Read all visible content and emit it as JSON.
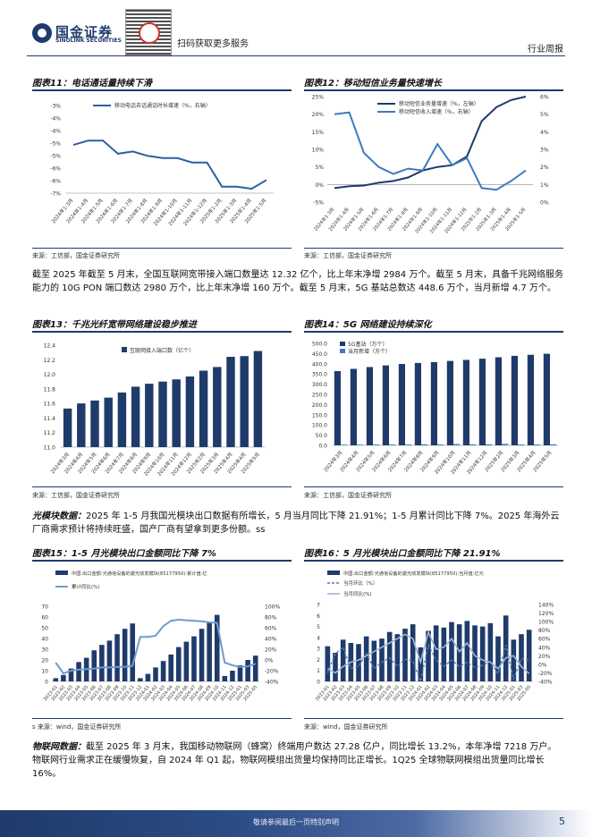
{
  "header": {
    "brand_cn": "国金证券",
    "brand_en": "SINOLINK SECURITIES",
    "qr_text": "扫码获取更多服务",
    "doc_type": "行业周报"
  },
  "fig11": {
    "title": "图表11：电话通话量持续下滑",
    "source": "来源：工信部，国金证券研究所",
    "chart_data": {
      "type": "line",
      "title": "电话通话量持续下滑",
      "series": [
        {
          "name": "移动电话去话通话时长增速（%，右轴）",
          "values": [
            -4.8,
            -4.6,
            -4.6,
            -5.2,
            -5.1,
            -5.3,
            -5.4,
            -5.4,
            -5.6,
            -5.6,
            -6.7,
            -6.7,
            -6.8,
            -6.4
          ]
        }
      ],
      "categories": [
        "2024年1-3月",
        "2024年1-4月",
        "2024年1-5月",
        "2024年1-6月",
        "2024年1-7月",
        "2024年1-8月",
        "2024年1-9月",
        "2024年1-10月",
        "2024年1-11月",
        "2024年1-12月",
        "2025年1-2月",
        "2025年1-3月",
        "2025年1-4月",
        "2025年1-5月"
      ],
      "yticks": [
        "-3%",
        "-4%",
        "-4%",
        "-5%",
        "-5%",
        "-6%",
        "-6%",
        "-7%"
      ],
      "ylim": [
        -7,
        -3
      ]
    }
  },
  "fig12": {
    "title": "图表12：移动短信业务量快速增长",
    "source": "来源：工信部，国金证券研究所",
    "chart_data": {
      "type": "line",
      "categories": [
        "2024年1-3月",
        "2024年1-4月",
        "2024年1-5月",
        "2024年1-6月",
        "2024年1-7月",
        "2024年1-8月",
        "2024年1-9月",
        "2024年1-10月",
        "2024年1-11月",
        "2024年1-12月",
        "2025年1-2月",
        "2025年1-3月",
        "2025年1-4月",
        "2025年1-5月"
      ],
      "series": [
        {
          "name": "移动短信业务量增速（%，左轴）",
          "axis": "left",
          "values": [
            -1,
            -0.5,
            -0.3,
            0.5,
            1,
            2,
            4,
            5,
            5.5,
            8,
            18,
            22,
            24,
            25
          ]
        },
        {
          "name": "移动短信收入增速（%，右轴）",
          "axis": "right",
          "values": [
            5,
            5.1,
            2.8,
            2,
            1.6,
            1.9,
            1.8,
            3.3,
            2.1,
            2.5,
            0.8,
            0.7,
            1.2,
            1.8
          ]
        }
      ],
      "left_ticks": [
        "25%",
        "20%",
        "15%",
        "10%",
        "5%",
        "0%",
        "-5%"
      ],
      "right_ticks": [
        "6%",
        "5%",
        "4%",
        "3%",
        "2%",
        "1%",
        "0%"
      ],
      "ylim_left": [
        -5,
        25
      ],
      "ylim_right": [
        0,
        6
      ]
    }
  },
  "para1": "截至 2025 年截至 5 月末，全国互联网宽带接入端口数量达 12.32 亿个，比上年末净增 2984 万个。截至 5 月末，具备千兆网络服务能力的 10G PON 端口数达 2980 万个，比上年末净增 160 万个。截至 5 月末，5G 基站总数达 448.6 万个，当月新增 4.7 万个。",
  "fig13": {
    "title": "图表13：千兆光纤宽带网络建设稳步推进",
    "source": "来源：工信部，国金证券研究所",
    "chart_data": {
      "type": "bar",
      "series": [
        {
          "name": "互联网接入端口数（亿个）",
          "values": [
            11.53,
            11.6,
            11.64,
            11.68,
            11.75,
            11.83,
            11.87,
            11.9,
            11.93,
            11.97,
            12.05,
            12.1,
            12.24,
            12.25,
            12.32
          ]
        }
      ],
      "categories": [
        "2024年3月",
        "2024年4月",
        "2024年5月",
        "2024年6月",
        "2024年7月",
        "2024年8月",
        "2024年9月",
        "2024年10月",
        "2024年11月",
        "2024年12月",
        "2025年2月",
        "2025年3月",
        "2025年4月",
        "2025年4月",
        "2025年5月"
      ],
      "yticks": [
        "12.4",
        "12.2",
        "12.0",
        "11.8",
        "11.6",
        "11.4",
        "11.2",
        "11.0"
      ],
      "ylim": [
        11.0,
        12.4
      ]
    }
  },
  "fig14": {
    "title": "图表14：5G 网络建设持续深化",
    "source": "来源：工信部，国金证券研究所",
    "chart_data": {
      "type": "bar",
      "categories": [
        "2024年3月",
        "2024年4月",
        "2024年5月",
        "2024年6月",
        "2024年7月",
        "2024年8月",
        "2024年9月",
        "2024年10月",
        "2024年11月",
        "2024年12月",
        "2025年2月",
        "2025年3月",
        "2025年4月",
        "2025年5月"
      ],
      "series": [
        {
          "name": "5G基站（万个）",
          "values": [
            364,
            375,
            384,
            392,
            399,
            404,
            408,
            414,
            419,
            425,
            432,
            439,
            444,
            449
          ]
        },
        {
          "name": "当月新增（万个）",
          "values": [
            3,
            3,
            4,
            4,
            4,
            5,
            4,
            6,
            5,
            5,
            7,
            4,
            4,
            5
          ]
        }
      ],
      "yticks": [
        "500.0",
        "450.0",
        "400.0",
        "350.0",
        "300.0",
        "250.0",
        "200.0",
        "150.0",
        "100.0",
        "50.0",
        "0.0"
      ],
      "ylim": [
        0,
        500
      ]
    }
  },
  "para2_label": "光模块数据：",
  "para2": "2025 年 1-5 月我国光模块出口数据有所增长，5 月当月同比下降 21.91%；1-5 月累计同比下降 7%。2025 年海外云厂商需求预计将持续旺盛，国产厂商有望拿到更多份额。ss",
  "fig15": {
    "title": "图表15：1-5 月光模块出口金额同比下降 7%",
    "source": "s 来源：wind，国金证券研究所",
    "chart_data": {
      "type": "bar",
      "legend": [
        "中国:出口金额:光通信设备的激光收发模块(85177950):累计值:亿",
        "累计同比(%)"
      ],
      "series": [
        {
          "name": "累计值",
          "axis": "left",
          "values": [
            3,
            6,
            12,
            18,
            22,
            29,
            34,
            38,
            44,
            49,
            54,
            3,
            7,
            13,
            19,
            25,
            32,
            37,
            42,
            49,
            55,
            62,
            5,
            10,
            15,
            20,
            24
          ]
        },
        {
          "name": "累计同比(%)",
          "axis": "right",
          "values": [
            -5,
            -25,
            -20,
            -18,
            -17,
            -16,
            -14,
            -14,
            -13,
            -13,
            -11,
            43,
            43,
            45,
            63,
            73,
            75,
            74,
            73,
            72,
            70,
            69,
            -5,
            -10,
            -13,
            -12,
            -7
          ]
        }
      ],
      "left_ticks": [
        "70",
        "60",
        "50",
        "40",
        "30",
        "20",
        "10",
        "0"
      ],
      "right_ticks": [
        "100%",
        "80%",
        "60%",
        "40%",
        "20%",
        "0%",
        "-20%",
        "-40%"
      ],
      "ylim_left": [
        0,
        70
      ],
      "ylim_right": [
        -40,
        100
      ],
      "xlabels": [
        "2023-01",
        "2023-02",
        "2023-03",
        "2023-04",
        "2023-05",
        "2023-06",
        "2023-07",
        "2023-08",
        "2023-09",
        "2023-10",
        "2023-11",
        "2023-12",
        "2024-01",
        "2024-02",
        "2024-03",
        "2024-04",
        "2024-05",
        "2024-06",
        "2024-07",
        "2024-08",
        "2024-09",
        "2024-10",
        "2024-11",
        "2024-12",
        "2025-01",
        "2025-03",
        "2025-05"
      ]
    }
  },
  "fig16": {
    "title": "图表16：5 月光模块出口金额同比下降 21.91%",
    "source": "来源：wind，国金证券研究所",
    "chart_data": {
      "type": "bar",
      "legend": [
        "中国:出口金额:光通信设备的激光收发模块(85177950):当月值:亿元",
        "当月环比（%）",
        "当月同比(%)"
      ],
      "series": [
        {
          "name": "当月值",
          "axis": "left",
          "values": [
            3.2,
            2.6,
            3.8,
            3.5,
            3.4,
            4.1,
            3.7,
            3.9,
            4.5,
            4.3,
            4.8,
            5.2,
            3.1,
            4.6,
            5.1,
            4.9,
            5.4,
            5.2,
            5.5,
            5.1,
            5.0,
            5.3,
            4.1,
            6.0,
            3.8,
            4.3,
            4.7
          ]
        },
        {
          "name": "当月环比（%）",
          "axis": "right",
          "values": [
            -20,
            25,
            40,
            -10,
            -5,
            25,
            -10,
            5,
            15,
            -5,
            12,
            8,
            -40,
            45,
            10,
            -5,
            10,
            -5,
            5,
            -8,
            -2,
            6,
            -22,
            45,
            -35,
            13,
            10
          ]
        },
        {
          "name": "当月同比(%)",
          "axis": "right",
          "values": [
            -10,
            -20,
            -5,
            5,
            10,
            20,
            30,
            40,
            50,
            60,
            70,
            60,
            5,
            75,
            35,
            40,
            60,
            30,
            50,
            20,
            10,
            5,
            -10,
            15,
            20,
            -5,
            -22
          ]
        }
      ],
      "left_ticks": [
        "7",
        "6",
        "5",
        "4",
        "3",
        "2",
        "1",
        "0"
      ],
      "right_ticks": [
        "140%",
        "120%",
        "100%",
        "80%",
        "60%",
        "40%",
        "20%",
        "0%",
        "-20%",
        "-40%"
      ],
      "ylim_left": [
        0,
        7
      ],
      "ylim_right": [
        -40,
        140
      ],
      "xlabels": [
        "2023-01",
        "2023-02",
        "2023-03",
        "2023-04",
        "2023-05",
        "2023-06",
        "2023-07",
        "2023-08",
        "2023-09",
        "2023-10",
        "2023-11",
        "2023-12",
        "2024-01",
        "2024-02",
        "2024-03",
        "2024-04",
        "2024-05",
        "2024-06",
        "2024-07",
        "2024-08",
        "2024-09",
        "2024-10",
        "2024-11",
        "2024-12",
        "2025-01",
        "2025-03",
        "2025-05"
      ]
    }
  },
  "para3_label": "物联网数据：",
  "para3": "截至 2025 年 3 月末，我国移动物联网（蜂窝）终端用户数达 27.28 亿户，同比增长 13.2%，本年净增 7218 万户。物联网行业需求正在缓慢恢复，自 2024 年 Q1 起，物联网模组出货量均保持同比正增长。1Q25 全球物联网模组出货量同比增长 16%。",
  "footer": {
    "disclaimer": "敬请参阅最后一页特别声明",
    "page": "5"
  },
  "colors": {
    "navy": "#1f3b6b",
    "blue": "#2e5fa3",
    "light": "#9fb6d8"
  }
}
